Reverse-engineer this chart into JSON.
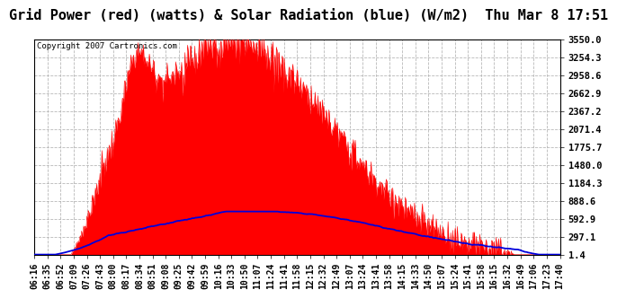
{
  "title": "Grid Power (red) (watts) & Solar Radiation (blue) (W/m2)  Thu Mar 8 17:51",
  "copyright_text": "Copyright 2007 Cartronics.com",
  "background_color": "#ffffff",
  "plot_bg_color": "#ffffff",
  "grid_color": "#b0b0b0",
  "yticks": [
    1.4,
    297.1,
    592.9,
    888.6,
    1184.3,
    1480.0,
    1775.7,
    2071.4,
    2367.2,
    2662.9,
    2958.6,
    3254.3,
    3550.0
  ],
  "ymin": 0,
  "ymax": 3550.0,
  "red_color": "#ff0000",
  "blue_color": "#0000dd",
  "title_fontsize": 11,
  "tick_fontsize": 7.5,
  "xtick_labels": [
    "06:16",
    "06:35",
    "06:52",
    "07:09",
    "07:26",
    "07:43",
    "08:00",
    "08:17",
    "08:34",
    "08:51",
    "09:08",
    "09:25",
    "09:42",
    "09:59",
    "10:16",
    "10:33",
    "10:50",
    "11:07",
    "11:24",
    "11:41",
    "11:58",
    "12:15",
    "12:32",
    "12:49",
    "13:07",
    "13:24",
    "13:41",
    "13:58",
    "14:15",
    "14:33",
    "14:50",
    "15:07",
    "15:24",
    "15:41",
    "15:58",
    "16:15",
    "16:32",
    "16:49",
    "17:06",
    "17:23",
    "17:40"
  ]
}
